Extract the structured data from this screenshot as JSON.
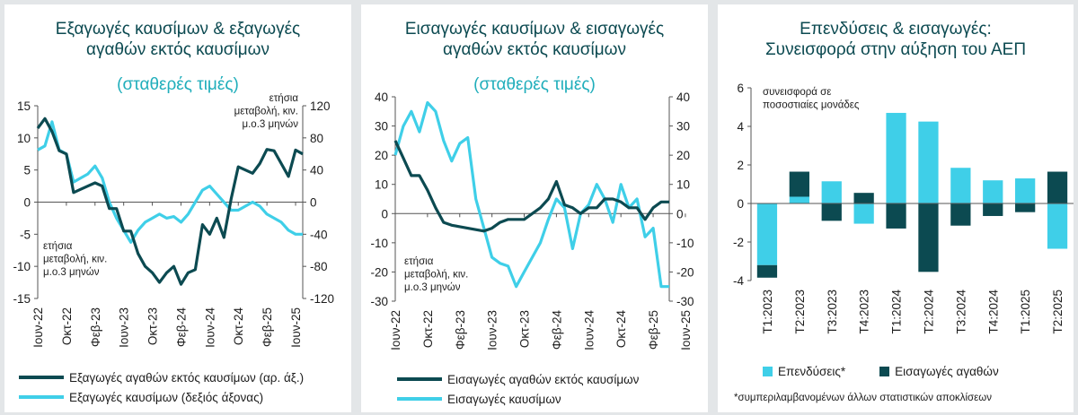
{
  "colors": {
    "dark": "#0c4a51",
    "light": "#3fcfe8",
    "title": "#0c4a51",
    "subtitle": "#20aebb",
    "axis": "#555555"
  },
  "panels": [
    {
      "title_line1": "Εξαγωγές καυσίμων & εξαγωγές",
      "title_line2": "αγαθών εκτός καυσίμων",
      "subtitle": "(σταθερές τιμές)",
      "left_note": [
        "ετήσια",
        "μεταβολή, κιν.",
        "μ.ο.3 μηνών"
      ],
      "right_note": [
        "ετήσια",
        "μεταβολή, κιν.",
        "μ.ο.3 μηνών"
      ],
      "legend": [
        "Εξαγωγές αγαθών εκτός καυσίμων (αρ. άξ.)",
        "Εξαγωγές καυσίμων (δεξιός άξονας)"
      ]
    },
    {
      "title_line1": "Εισαγωγές καυσίμων & εισαγωγές",
      "title_line2": "αγαθών εκτός καυσίμων",
      "subtitle": "(σταθερές τιμές)",
      "left_note": [
        "ετήσια",
        "μεταβολή, κιν.",
        "μ.ο.3 μηνών"
      ],
      "legend": [
        "Εισαγωγές αγαθών εκτός καυσίμων",
        "Εισαγωγές καυσίμων"
      ]
    },
    {
      "title_line1": "Επενδύσεις & εισαγωγές:",
      "title_line2": "Συνεισφορά στην αύξηση του ΑΕΠ",
      "note": [
        "συνεισφορά σε",
        "ποσοστιαίες μονάδες"
      ],
      "legend": [
        "Επενδύσεις*",
        "Εισαγωγές αγαθών"
      ],
      "footnote": "*συμπεριλαμβανομένων άλλων στατιστικών αποκλίσεων"
    }
  ],
  "chart_data": [
    {
      "type": "line",
      "x_ticks": [
        "Ιουν-22",
        "Οκτ-22",
        "Φεβ-23",
        "Ιουν-23",
        "Οκτ-23",
        "Φεβ-24",
        "Ιουν-24",
        "Οκτ-24",
        "Φεβ-25",
        "Ιουν-25"
      ],
      "x_tick_index": [
        0,
        4,
        8,
        12,
        16,
        20,
        24,
        28,
        32,
        36
      ],
      "ylim_left": [
        -15,
        15
      ],
      "yticks_left": [
        -15,
        -10,
        -5,
        0,
        5,
        10,
        15
      ],
      "ylim_right": [
        -120,
        120
      ],
      "yticks_right": [
        -120,
        -80,
        -40,
        0,
        40,
        80,
        120
      ],
      "series": [
        {
          "name": "Εξαγωγές αγαθών εκτός καυσίμων (αρ. άξ.)",
          "axis": "left",
          "values": [
            11.5,
            13,
            11,
            8,
            7.5,
            1.5,
            2,
            2.5,
            3,
            2.5,
            -1,
            -1,
            -4.5,
            -4.5,
            -8,
            -10,
            -11,
            -12.5,
            -11,
            -10,
            -12.8,
            -11,
            -10.5,
            -3.5,
            -5,
            -2.5,
            -5.5,
            0.5,
            5.5,
            5,
            4.5,
            6,
            8.2,
            8,
            6,
            4,
            8.1,
            7.5
          ]
        },
        {
          "name": "Εξαγωγές καυσίμων (δεξιός άξονας)",
          "axis": "right",
          "values": [
            65,
            70,
            100,
            65,
            60,
            25,
            30,
            35,
            45,
            30,
            0,
            -20,
            -35,
            -50,
            -35,
            -25,
            -20,
            -15,
            -20,
            -18,
            -25,
            -15,
            0,
            15,
            20,
            10,
            0,
            -10,
            -10,
            -5,
            0,
            -5,
            -15,
            -20,
            -25,
            -35,
            -40,
            -40
          ]
        }
      ]
    },
    {
      "type": "line",
      "x_ticks": [
        "Ιουν-22",
        "Οκτ-22",
        "Φεβ-23",
        "Ιουν-23",
        "Οκτ-23",
        "Φεβ-24",
        "Ιουν-24",
        "Οκτ-24",
        "Φεβ-25",
        "Ιουν-25"
      ],
      "x_tick_index": [
        0,
        4,
        8,
        12,
        16,
        20,
        24,
        28,
        32,
        36
      ],
      "ylim_left": [
        -30,
        40
      ],
      "yticks_left": [
        -30,
        -20,
        -10,
        0,
        10,
        20,
        30,
        40
      ],
      "ylim_right": [
        -30,
        40
      ],
      "yticks_right": [
        -30,
        -20,
        -10,
        0,
        10,
        20,
        30,
        40
      ],
      "series": [
        {
          "name": "Εισαγωγές αγαθών εκτός καυσίμων",
          "axis": "left",
          "values": [
            25,
            19,
            13,
            13,
            8,
            2,
            -3,
            -4,
            -4.5,
            -5,
            -5.5,
            -6,
            -5,
            -3,
            -2,
            -2,
            -2,
            0,
            2,
            5,
            11,
            3,
            2,
            0,
            2,
            2,
            5,
            5,
            4,
            2,
            2,
            -2,
            2,
            4,
            4
          ]
        },
        {
          "name": "Εισαγωγές καυσίμων",
          "axis": "right",
          "values": [
            20,
            30,
            35,
            28,
            38,
            35,
            25,
            18,
            24,
            26,
            5,
            -5,
            -15,
            -17,
            -18,
            -25,
            -20,
            -15,
            -10,
            -2,
            5,
            2,
            -12,
            0,
            3,
            10,
            5,
            -3,
            10,
            2,
            5,
            -8,
            -5,
            -25,
            -25
          ]
        }
      ]
    },
    {
      "type": "bar",
      "categories": [
        "Τ1:2023",
        "Τ2:2023",
        "Τ3:2023",
        "Τ4:2023",
        "Τ1:2024",
        "Τ2:2024",
        "Τ3:2024",
        "Τ4:2024",
        "Τ1:2025",
        "Τ2:2025"
      ],
      "ylim": [
        -4,
        6
      ],
      "yticks": [
        -4,
        -2,
        0,
        2,
        4,
        6
      ],
      "stacked": true,
      "series": [
        {
          "name": "Επενδύσεις*",
          "values": [
            -3.2,
            0.35,
            1.15,
            -1.05,
            4.7,
            4.25,
            1.85,
            1.2,
            1.3,
            -2.35
          ]
        },
        {
          "name": "Εισαγωγές αγαθών",
          "values": [
            -0.65,
            1.3,
            -0.9,
            0.55,
            -1.3,
            -3.55,
            -1.15,
            -0.65,
            -0.45,
            1.65
          ]
        }
      ]
    }
  ]
}
